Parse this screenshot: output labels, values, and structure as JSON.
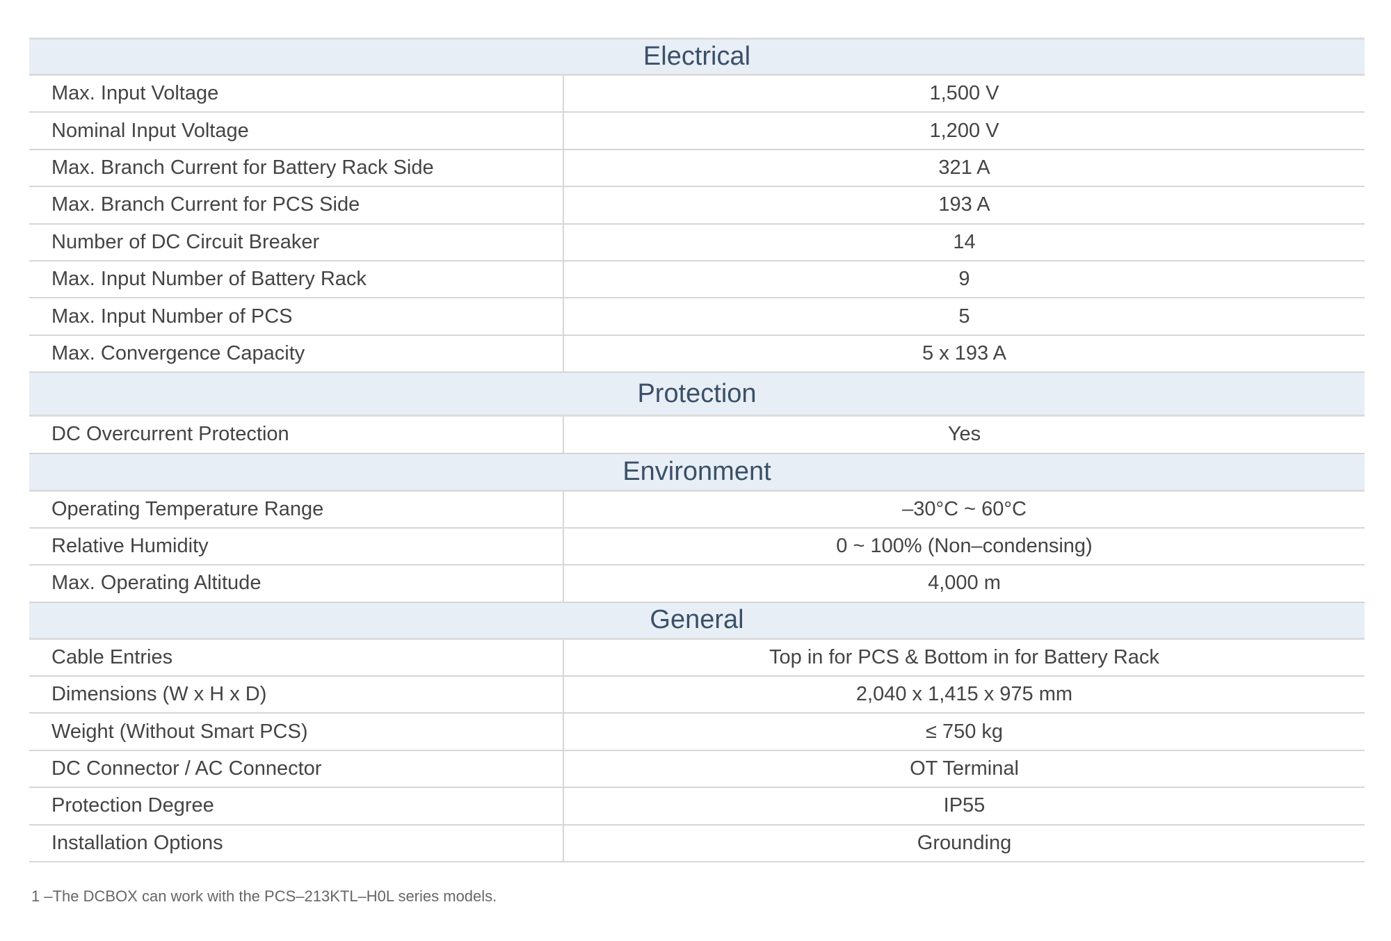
{
  "sections": [
    {
      "title": "Electrical",
      "rows": [
        [
          "Max. Input Voltage",
          "1,500 V"
        ],
        [
          "Nominal Input Voltage",
          "1,200 V"
        ],
        [
          "Max. Branch Current for Battery Rack Side",
          "321 A"
        ],
        [
          "Max. Branch Current for PCS Side",
          "193 A"
        ],
        [
          "Number of DC Circuit Breaker",
          "14"
        ],
        [
          "Max. Input Number of Battery Rack",
          "9"
        ],
        [
          "Max. Input Number of PCS",
          "5"
        ],
        [
          "Max. Convergence Capacity",
          "5 x 193 A"
        ]
      ]
    },
    {
      "title": "Protection",
      "rows": [
        [
          "DC Overcurrent Protection",
          "Yes"
        ]
      ]
    },
    {
      "title": "Environment",
      "rows": [
        [
          "Operating Temperature Range",
          "–30°C ~ 60°C"
        ],
        [
          "Relative Humidity",
          "0 ~ 100% (Non–condensing)"
        ],
        [
          "Max. Operating Altitude",
          "4,000 m"
        ]
      ]
    },
    {
      "title": "General",
      "rows": [
        [
          "Cable Entries",
          "Top in for PCS & Bottom in for Battery Rack"
        ],
        [
          "Dimensions (W x H x D)",
          "2,040 x 1,415 x 975 mm"
        ],
        [
          "Weight (Without Smart PCS)",
          "≤ 750 kg"
        ],
        [
          "DC Connector / AC Connector",
          "OT Terminal"
        ],
        [
          "Protection Degree",
          "IP55"
        ],
        [
          "Installation Options",
          "Grounding"
        ]
      ]
    }
  ],
  "footnote": "1 –The DCBOX can work with the PCS–213KTL–H0L series models.",
  "colors": {
    "section_bg": "#e8eef6",
    "section_text": "#3b5068",
    "text": "#444444"
  }
}
